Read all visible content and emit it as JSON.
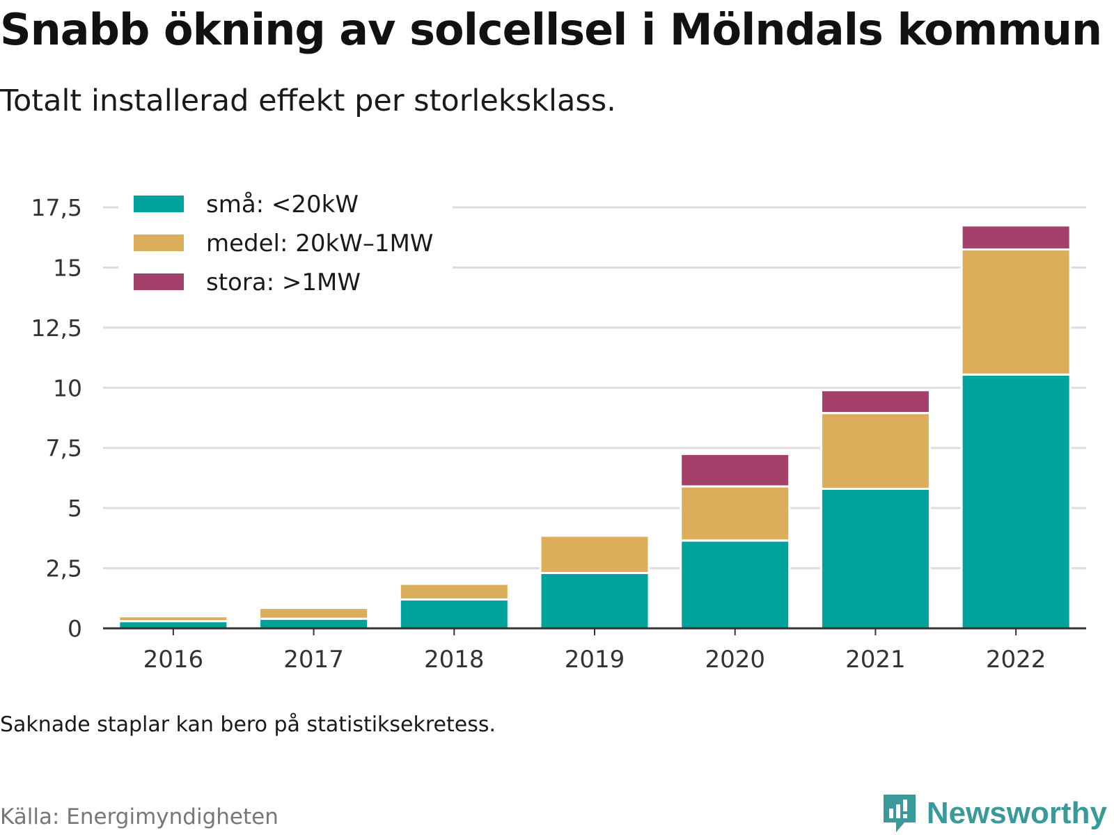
{
  "header": {
    "title": "Snabb ökning av solcellsel i Mölndals kommun",
    "subtitle": "Totalt installerad effekt per storleksklass."
  },
  "footer": {
    "note": "Saknade staplar kan bero på statistiksekretess.",
    "source": "Källa: Energimyndigheten",
    "brand": "Newsworthy"
  },
  "colors": {
    "sma": "#00a39b",
    "medel": "#dcae5c",
    "stora": "#a5406a",
    "grid": "#dddddd",
    "axis": "#333333",
    "brand": "#3a9a9b"
  },
  "chart_data": {
    "type": "bar",
    "stacked": true,
    "title": "Snabb ökning av solcellsel i Mölndals kommun",
    "subtitle": "Totalt installerad effekt per storleksklass.",
    "xlabel": "",
    "ylabel": "",
    "categories": [
      "2016",
      "2017",
      "2018",
      "2019",
      "2020",
      "2021",
      "2022"
    ],
    "series": [
      {
        "name": "små: <20kW",
        "color": "#00a39b",
        "values": [
          0.3,
          0.4,
          1.2,
          2.3,
          3.65,
          5.8,
          10.55
        ]
      },
      {
        "name": "medel: 20kW–1MW",
        "color": "#dcae5c",
        "values": [
          0.2,
          0.45,
          0.65,
          1.55,
          2.25,
          3.15,
          5.2
        ]
      },
      {
        "name": "stora: >1MW",
        "color": "#a5406a",
        "values": [
          0,
          0,
          0,
          0,
          1.35,
          0.95,
          1.0
        ]
      }
    ],
    "yticks": [
      "0",
      "2,5",
      "5",
      "7,5",
      "10",
      "12,5",
      "15",
      "17,5"
    ],
    "ytick_values": [
      0,
      2.5,
      5,
      7.5,
      10,
      12.5,
      15,
      17.5
    ],
    "ylim": [
      0,
      18
    ],
    "grid": true,
    "legend_position": "top-left"
  }
}
